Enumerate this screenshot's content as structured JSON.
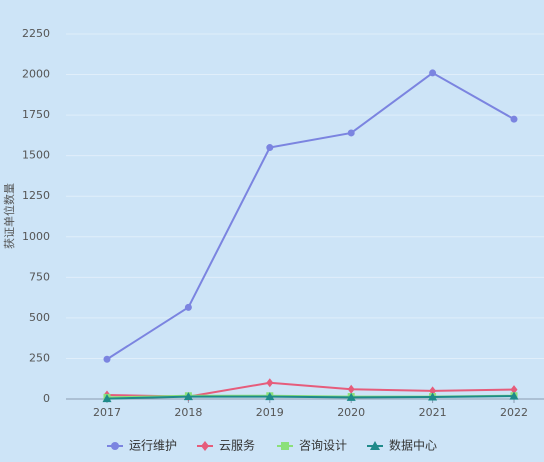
{
  "chart_data": {
    "type": "line",
    "y_label": "获证单位数量",
    "categories": [
      "2017",
      "2018",
      "2019",
      "2020",
      "2021",
      "2022"
    ],
    "series": [
      {
        "name": "运行维护",
        "color": "#7b84e0",
        "marker": "circle",
        "values": [
          245,
          565,
          1550,
          1640,
          2010,
          1725
        ]
      },
      {
        "name": "云服务",
        "color": "#e65c7b",
        "marker": "diamond",
        "values": [
          25,
          15,
          100,
          60,
          50,
          58
        ]
      },
      {
        "name": "咨询设计",
        "color": "#8be07a",
        "marker": "square",
        "values": [
          10,
          20,
          20,
          15,
          15,
          20
        ]
      },
      {
        "name": "数据中心",
        "color": "#1f8a8a",
        "marker": "triangle",
        "values": [
          2,
          15,
          15,
          10,
          12,
          18
        ]
      }
    ],
    "ylim": [
      0,
      2250
    ],
    "yticks": [
      0,
      250,
      500,
      750,
      1000,
      1250,
      1500,
      1750,
      2000,
      2250
    ],
    "grid": true
  }
}
